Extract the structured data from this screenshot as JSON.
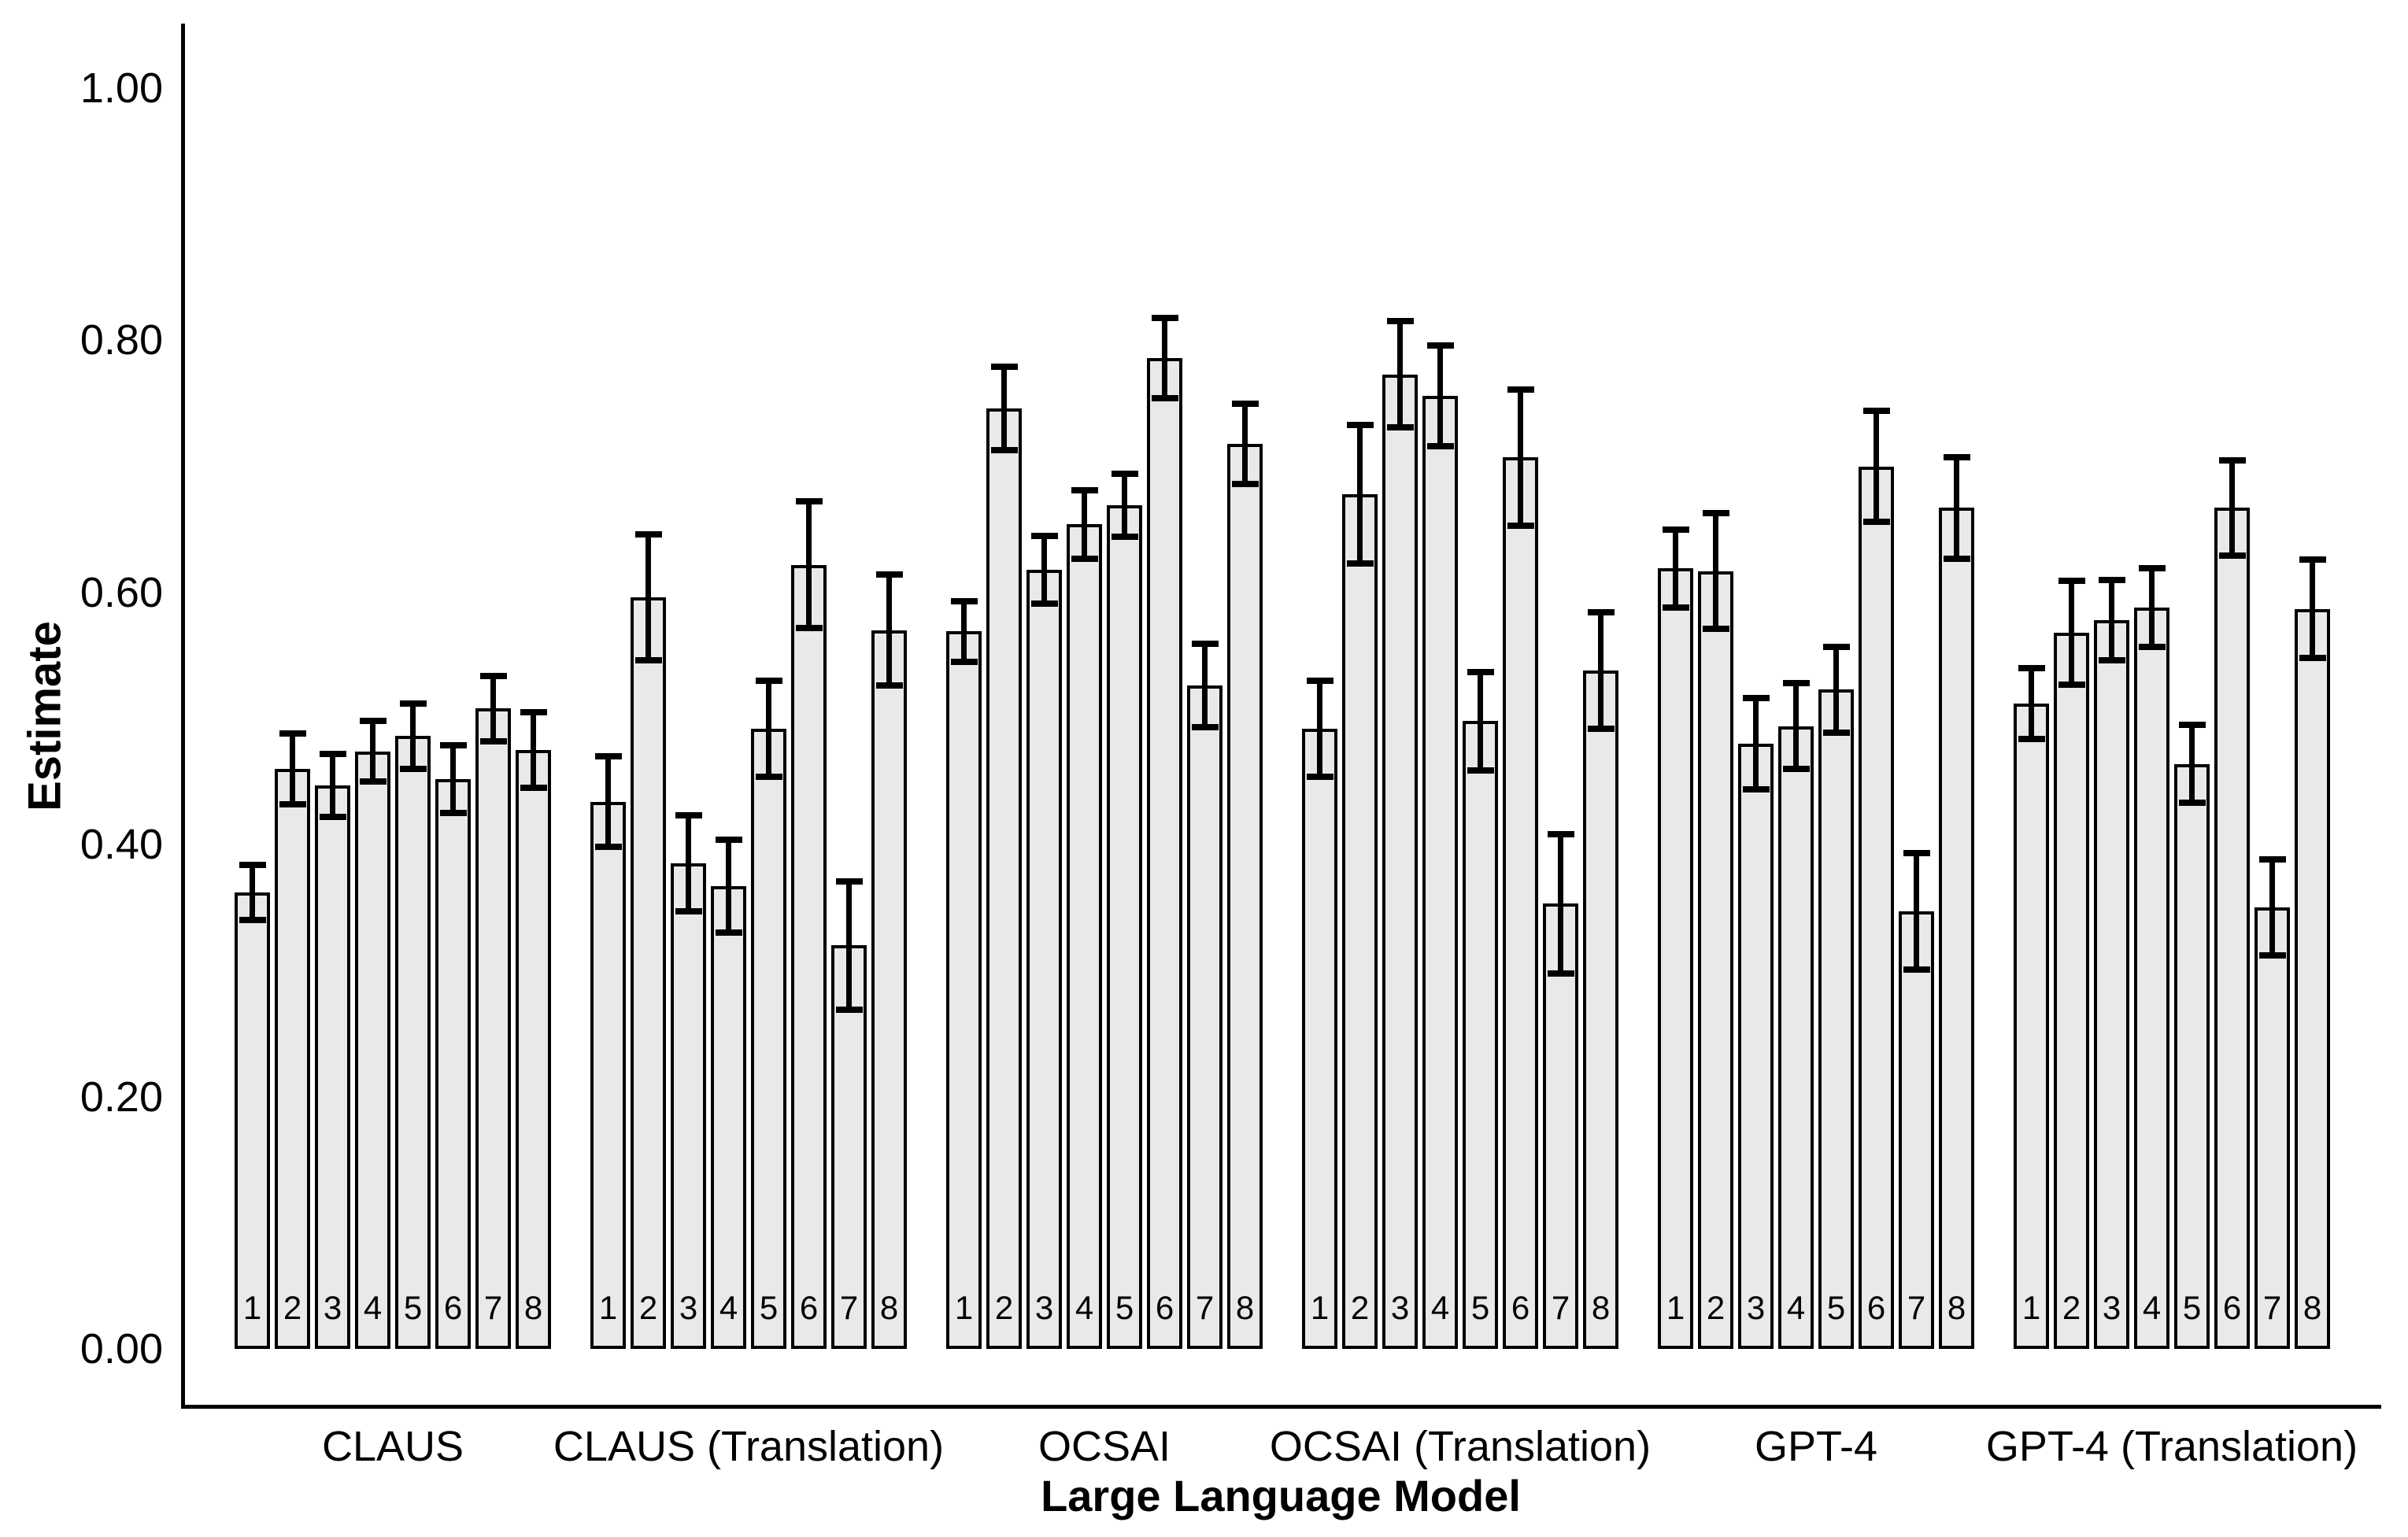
{
  "chart_data": {
    "type": "bar",
    "title": "",
    "ylabel": "Estimate",
    "xlabel": "Large Language Model",
    "ylim": [
      0,
      1
    ],
    "ytick_labels": [
      "0.00",
      "0.20",
      "0.40",
      "0.60",
      "0.80",
      "1.00"
    ],
    "ytick_values": [
      0,
      0.2,
      0.4,
      0.6,
      0.8,
      1.0
    ],
    "grid": false,
    "legend": "none",
    "bar_fill": "#e9e9e9",
    "bar_outline": "#000000",
    "error_bar_color": "#000000",
    "groups": [
      {
        "label": "CLAUS",
        "bars": [
          {
            "n": "1",
            "value": 0.362,
            "error": 0.022
          },
          {
            "n": "2",
            "value": 0.46,
            "error": 0.028
          },
          {
            "n": "3",
            "value": 0.447,
            "error": 0.025
          },
          {
            "n": "4",
            "value": 0.474,
            "error": 0.024
          },
          {
            "n": "5",
            "value": 0.486,
            "error": 0.026
          },
          {
            "n": "6",
            "value": 0.452,
            "error": 0.027
          },
          {
            "n": "7",
            "value": 0.508,
            "error": 0.026
          },
          {
            "n": "8",
            "value": 0.475,
            "error": 0.03
          }
        ]
      },
      {
        "label": "CLAUS (Translation)",
        "bars": [
          {
            "n": "1",
            "value": 0.434,
            "error": 0.036
          },
          {
            "n": "2",
            "value": 0.596,
            "error": 0.05
          },
          {
            "n": "3",
            "value": 0.385,
            "error": 0.038
          },
          {
            "n": "4",
            "value": 0.367,
            "error": 0.037
          },
          {
            "n": "5",
            "value": 0.492,
            "error": 0.038
          },
          {
            "n": "6",
            "value": 0.622,
            "error": 0.05
          },
          {
            "n": "7",
            "value": 0.32,
            "error": 0.051
          },
          {
            "n": "8",
            "value": 0.57,
            "error": 0.044
          }
        ]
      },
      {
        "label": "OCSAI",
        "bars": [
          {
            "n": "1",
            "value": 0.569,
            "error": 0.024
          },
          {
            "n": "2",
            "value": 0.746,
            "error": 0.033
          },
          {
            "n": "3",
            "value": 0.618,
            "error": 0.027
          },
          {
            "n": "4",
            "value": 0.654,
            "error": 0.027
          },
          {
            "n": "5",
            "value": 0.669,
            "error": 0.025
          },
          {
            "n": "6",
            "value": 0.786,
            "error": 0.032
          },
          {
            "n": "7",
            "value": 0.526,
            "error": 0.033
          },
          {
            "n": "8",
            "value": 0.718,
            "error": 0.032
          }
        ]
      },
      {
        "label": "OCSAI (Translation)",
        "bars": [
          {
            "n": "1",
            "value": 0.492,
            "error": 0.038
          },
          {
            "n": "2",
            "value": 0.678,
            "error": 0.055
          },
          {
            "n": "3",
            "value": 0.773,
            "error": 0.042
          },
          {
            "n": "4",
            "value": 0.756,
            "error": 0.04
          },
          {
            "n": "5",
            "value": 0.498,
            "error": 0.039
          },
          {
            "n": "6",
            "value": 0.707,
            "error": 0.054
          },
          {
            "n": "7",
            "value": 0.353,
            "error": 0.055
          },
          {
            "n": "8",
            "value": 0.538,
            "error": 0.046
          }
        ]
      },
      {
        "label": "GPT-4",
        "bars": [
          {
            "n": "1",
            "value": 0.619,
            "error": 0.031
          },
          {
            "n": "2",
            "value": 0.617,
            "error": 0.046
          },
          {
            "n": "3",
            "value": 0.48,
            "error": 0.036
          },
          {
            "n": "4",
            "value": 0.494,
            "error": 0.034
          },
          {
            "n": "5",
            "value": 0.523,
            "error": 0.034
          },
          {
            "n": "6",
            "value": 0.7,
            "error": 0.044
          },
          {
            "n": "7",
            "value": 0.347,
            "error": 0.046
          },
          {
            "n": "8",
            "value": 0.667,
            "error": 0.04
          }
        ]
      },
      {
        "label": "GPT-4 (Translation)",
        "bars": [
          {
            "n": "1",
            "value": 0.512,
            "error": 0.028
          },
          {
            "n": "2",
            "value": 0.568,
            "error": 0.041
          },
          {
            "n": "3",
            "value": 0.578,
            "error": 0.032
          },
          {
            "n": "4",
            "value": 0.588,
            "error": 0.031
          },
          {
            "n": "5",
            "value": 0.464,
            "error": 0.031
          },
          {
            "n": "6",
            "value": 0.667,
            "error": 0.038
          },
          {
            "n": "7",
            "value": 0.35,
            "error": 0.038
          },
          {
            "n": "8",
            "value": 0.587,
            "error": 0.039
          }
        ]
      }
    ]
  }
}
